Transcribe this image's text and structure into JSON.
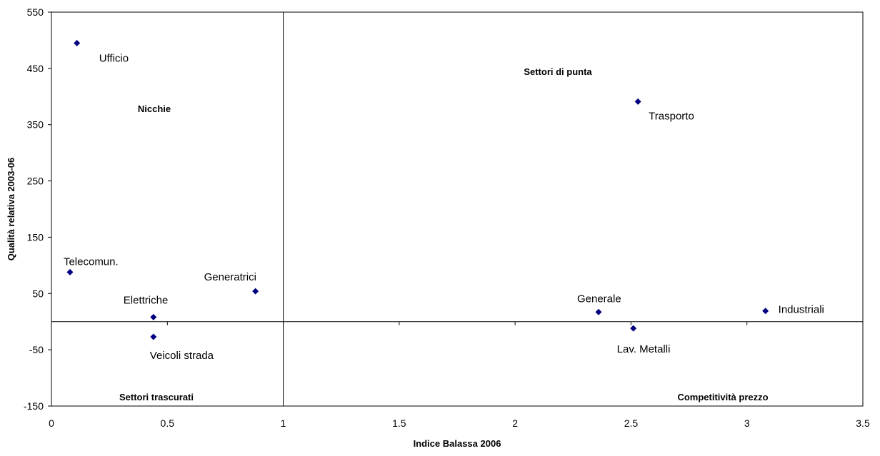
{
  "chart_data": {
    "type": "scatter",
    "title": "",
    "xlabel": "Indice Balassa 2006",
    "ylabel": "Qualità relativa 2003-06",
    "xlim": [
      0,
      3.5
    ],
    "ylim": [
      -150,
      550
    ],
    "x_ticks": [
      "0",
      "0.5",
      "1",
      "1.5",
      "2",
      "2.5",
      "3",
      "3.5"
    ],
    "y_ticks": [
      "550",
      "450",
      "350",
      "250",
      "150",
      "50",
      "-50",
      "-150"
    ],
    "reference_lines": {
      "x": 1,
      "y": 0
    },
    "grid": false,
    "marker_color": "#000080",
    "points": [
      {
        "label": "Ufficio",
        "x": 0.11,
        "y": 495
      },
      {
        "label": "Trasporto",
        "x": 2.53,
        "y": 391
      },
      {
        "label": "Telecomun.",
        "x": 0.08,
        "y": 88
      },
      {
        "label": "Generatrici",
        "x": 0.88,
        "y": 54
      },
      {
        "label": "Elettriche",
        "x": 0.44,
        "y": 8
      },
      {
        "label": "Veicoli strada",
        "x": 0.44,
        "y": -27
      },
      {
        "label": "Generale",
        "x": 2.36,
        "y": 17
      },
      {
        "label": "Industriali",
        "x": 3.08,
        "y": 19
      },
      {
        "label": "Lav. Metalli",
        "x": 2.51,
        "y": -12
      }
    ],
    "quadrant_labels": [
      "Nicchie",
      "Settori di punta",
      "Settori trascurati",
      "Competitività prezzo"
    ]
  }
}
